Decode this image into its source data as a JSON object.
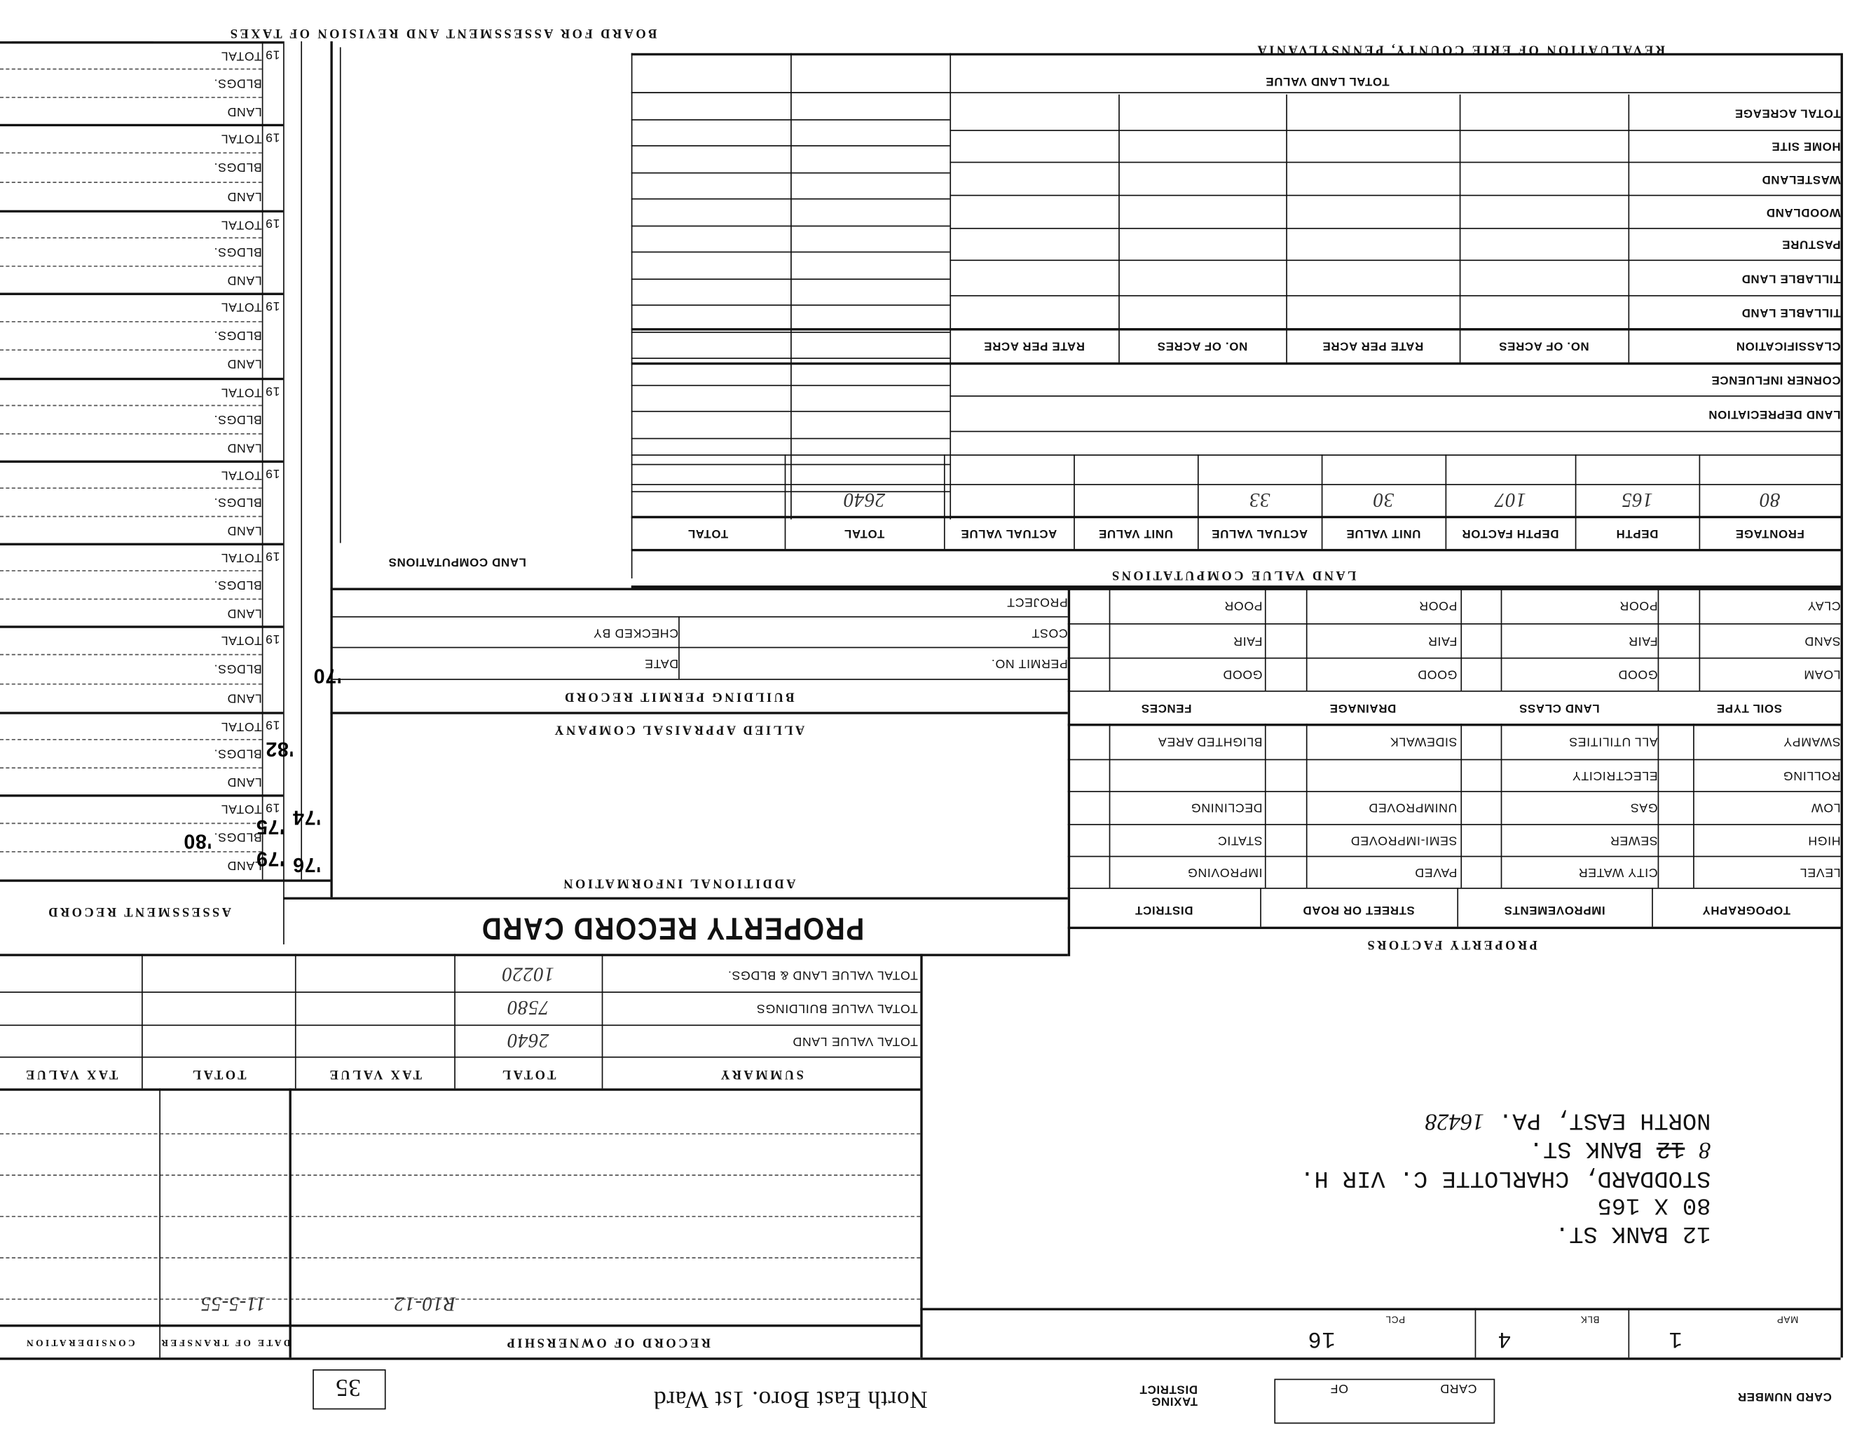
{
  "header": {
    "board": "BOARD FOR ASSESSMENT AND REVISION OF TAXES",
    "revaluation": "REVALUATION OF ERIE COUNTY, PENNSYLVANIA"
  },
  "assessment_record": {
    "title": "ASSESSMENT RECORD",
    "year_prefix": "19",
    "row_labels": [
      "TOTAL",
      "BLDGS.",
      "LAND"
    ],
    "handwritten_notes": [
      "'76",
      "'74",
      "'79",
      "'75",
      "'82",
      "'80",
      "'70"
    ]
  },
  "land_computations": {
    "title": "LAND COMPUTATIONS"
  },
  "land_table": {
    "title": "TOTAL LAND VALUE",
    "rows": [
      "TOTAL ACREAGE",
      "HOME SITE",
      "WASTELAND",
      "WOODLAND",
      "PASTURE",
      "TILLABLE LAND",
      "TILLABLE LAND",
      "CLASSIFICATION",
      "CORNER INFLUENCE",
      "LAND DEPRECIATION"
    ],
    "classification_headers": [
      "NO. OF ACRES",
      "RATE PER ACRE",
      "NO. OF ACRES",
      "RATE PER ACRE"
    ]
  },
  "land_value_computations": {
    "title": "LAND VALUE COMPUTATIONS",
    "headers": [
      "FRONTAGE",
      "DEPTH",
      "DEPTH FACTOR",
      "UNIT VALUE",
      "ACTUAL VALUE",
      "UNIT VALUE",
      "ACTUAL VALUE",
      "TOTAL",
      "TOTAL"
    ],
    "values": [
      "80",
      "165",
      "107",
      "30",
      "33",
      "",
      "",
      "2640",
      ""
    ]
  },
  "property_factors": {
    "title": "PROPERTY FACTORS",
    "soil_headers": [
      "SOIL TYPE",
      "LAND CLASS",
      "DRAINAGE",
      "FENCES"
    ],
    "soil_rows": [
      [
        "CLAY",
        "POOR",
        "POOR",
        "POOR"
      ],
      [
        "SAND",
        "FAIR",
        "FAIR",
        "FAIR"
      ],
      [
        "LOAM",
        "GOOD",
        "GOOD",
        "GOOD"
      ]
    ],
    "headers": [
      "TOPOGRAPHY",
      "IMPROVEMENTS",
      "STREET OR ROAD",
      "DISTRICT"
    ],
    "rows": [
      [
        "SWAMPY",
        "ALL UTILITIES",
        "SIDEWALK",
        "BLIGHTED AREA"
      ],
      [
        "ROLLING",
        "ELECTRICITY",
        "",
        ""
      ],
      [
        "LOW",
        "GAS",
        "UNIMPROVED",
        "DECLINING"
      ],
      [
        "HIGH",
        "SEWER",
        "SEMI-IMPROVED",
        "STATIC"
      ],
      [
        "LEVEL",
        "CITY WATER",
        "PAVED",
        "IMPROVING"
      ]
    ]
  },
  "building_permit": {
    "title": "BUILDING PERMIT RECORD",
    "project": "PROJECT",
    "cost": "COST",
    "permit_no": "PERMIT NO.",
    "checked_by": "CHECKED BY",
    "date": "DATE"
  },
  "company": "ALLIED APPRAISAL COMPANY",
  "additional_information": "ADDITIONAL INFORMATION",
  "card_title": "PROPERTY RECORD CARD",
  "summary": {
    "headers": [
      "SUMMARY",
      "TOTAL",
      "TAX VALUE",
      "TOTAL",
      "TAX VALUE"
    ],
    "rows": [
      {
        "label": "TOTAL VALUE LAND & BLDGS.",
        "total": "10220"
      },
      {
        "label": "TOTAL VALUE BUILDINGS",
        "total": "7580"
      },
      {
        "label": "TOTAL VALUE LAND",
        "total": "2640"
      }
    ]
  },
  "ownership": {
    "title": "RECORD OF OWNERSHIP",
    "date_of_transfer": "DATE OF TRANSFER",
    "consideration": "CONSIDERATION",
    "entries": [
      {
        "record": "R10-12",
        "date": "11-5-55"
      }
    ]
  },
  "address": {
    "street": "12 BANK ST.",
    "lot": "80 X 165",
    "owner": "STODDARD, CHARLOTTE C. VIR H.",
    "mail_number_old": "12",
    "mail_number_new": "8",
    "mail_street": "BANK ST.",
    "city": "NORTH EAST, PA.",
    "zip": "16428"
  },
  "parcel": {
    "map_label": "MAP",
    "map": "1",
    "blk_label": "BLK",
    "blk": "4",
    "pcl_label": "PCL",
    "pcl": "16"
  },
  "footer": {
    "card_number": "CARD NUMBER",
    "card": "CARD",
    "of": "OF",
    "taxing_district": "TAXING DISTRICT",
    "district_name": "North East Boro. 1st Ward",
    "stamp_number": "35"
  }
}
